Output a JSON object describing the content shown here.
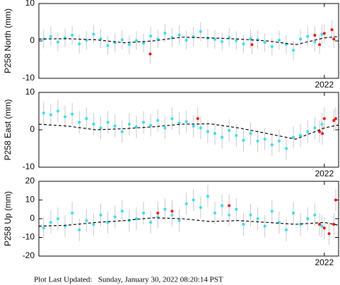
{
  "chart_data": [
    {
      "type": "scatter",
      "ylabel": "P258 North (mm)",
      "ylim": [
        -10,
        10
      ],
      "yticks": [
        -10,
        0,
        10
      ],
      "xlim": [
        2019.0,
        2022.15
      ],
      "xticks": [
        2022
      ],
      "series": [
        {
          "mode": "markers",
          "color": "#33ddee",
          "error": 2.5,
          "x": [
            2019.05,
            2019.125,
            2019.2,
            2019.275,
            2019.35,
            2019.425,
            2019.5,
            2019.575,
            2019.65,
            2019.725,
            2019.8,
            2019.875,
            2019.95,
            2020.025,
            2020.1,
            2020.175,
            2020.25,
            2020.325,
            2020.4,
            2020.475,
            2020.55,
            2020.625,
            2020.7,
            2020.775,
            2020.85,
            2020.925,
            2021.0,
            2021.075,
            2021.15,
            2021.225,
            2021.3,
            2021.375,
            2021.45,
            2021.525,
            2021.6,
            2021.675,
            2021.75,
            2021.825,
            2021.9,
            2021.975
          ],
          "values": [
            0.5,
            1.2,
            -0.3,
            0.8,
            1.5,
            -0.8,
            0.2,
            1.8,
            0.6,
            -1.2,
            -0.5,
            0.3,
            -1,
            0.1,
            -0.6,
            1.3,
            0.5,
            2.1,
            0.9,
            1.6,
            0.2,
            1.1,
            2.5,
            0.7,
            0.4,
            -0.2,
            0.9,
            0.1,
            -0.8,
            0.6,
            0.3,
            -0.4,
            -1.5,
            0.2,
            -0.9,
            -2.5,
            0.5,
            1.2,
            -0.3,
            1.8
          ]
        },
        {
          "mode": "markers",
          "color": "#ee1111",
          "error": 2.5,
          "x": [
            2020.17,
            2021.24,
            2021.9,
            2021.95,
            2022.0,
            2022.08,
            2022.1
          ],
          "values": [
            -3.5,
            -1,
            1.5,
            -1,
            2,
            3,
            0.5
          ]
        },
        {
          "mode": "dashed-line",
          "color": "#000000",
          "x": [
            2019.0,
            2019.3,
            2019.6,
            2019.9,
            2020.2,
            2020.5,
            2020.8,
            2021.1,
            2021.4,
            2021.7,
            2022.0,
            2022.15
          ],
          "values": [
            0.5,
            0.6,
            0.3,
            -0.5,
            0,
            1,
            0.8,
            0.5,
            0,
            -1,
            0.8,
            1.2
          ]
        }
      ]
    },
    {
      "type": "scatter",
      "ylabel": "P258 East (mm)",
      "ylim": [
        -10,
        10
      ],
      "yticks": [
        -10,
        0,
        10
      ],
      "xlim": [
        2019.0,
        2022.15
      ],
      "xticks": [
        2022
      ],
      "series": [
        {
          "mode": "markers",
          "color": "#33ddee",
          "error": 3,
          "x": [
            2019.05,
            2019.125,
            2019.2,
            2019.275,
            2019.35,
            2019.425,
            2019.5,
            2019.575,
            2019.65,
            2019.725,
            2019.8,
            2019.875,
            2019.95,
            2020.025,
            2020.1,
            2020.175,
            2020.25,
            2020.325,
            2020.4,
            2020.475,
            2020.55,
            2020.625,
            2020.7,
            2020.775,
            2020.85,
            2020.925,
            2021.0,
            2021.075,
            2021.15,
            2021.225,
            2021.3,
            2021.375,
            2021.45,
            2021.525,
            2021.6,
            2021.675,
            2021.75,
            2021.825,
            2021.9,
            2021.975
          ],
          "values": [
            4.5,
            4,
            5,
            3.5,
            4.2,
            2,
            3,
            1.5,
            0.5,
            2,
            1,
            -0.5,
            1.5,
            0.8,
            2,
            1.2,
            2.5,
            0.5,
            3,
            1.8,
            2.2,
            1,
            0.5,
            -0.5,
            -1,
            -2,
            -0.2,
            -1.5,
            -2.8,
            -1,
            -3,
            -2.5,
            -4,
            -3,
            -5,
            -2,
            -1.5,
            -0.5,
            0.5,
            1.5
          ]
        },
        {
          "mode": "markers",
          "color": "#ee1111",
          "error": 3,
          "x": [
            2020.67,
            2021.95,
            2021.98,
            2022.0,
            2022.1,
            2022.12
          ],
          "values": [
            3,
            -0.5,
            -1,
            3,
            2.5,
            3
          ]
        },
        {
          "mode": "dashed-line",
          "color": "#000000",
          "x": [
            2019.0,
            2019.3,
            2019.6,
            2019.9,
            2020.2,
            2020.5,
            2020.8,
            2021.1,
            2021.4,
            2021.7,
            2022.0,
            2022.15
          ],
          "values": [
            1.5,
            1,
            0,
            0.3,
            0.8,
            1.5,
            1.6,
            0.5,
            -1,
            -2.5,
            0.5,
            1.3
          ]
        }
      ]
    },
    {
      "type": "scatter",
      "ylabel": "P258 Up (mm)",
      "ylim": [
        -20,
        20
      ],
      "yticks": [
        -20,
        -10,
        0,
        10,
        20
      ],
      "xlim": [
        2019.0,
        2022.15
      ],
      "xticks": [
        2022
      ],
      "series": [
        {
          "mode": "markers",
          "color": "#33ddee",
          "error": 6,
          "x": [
            2019.05,
            2019.125,
            2019.2,
            2019.275,
            2019.35,
            2019.425,
            2019.5,
            2019.575,
            2019.65,
            2019.725,
            2019.8,
            2019.875,
            2019.95,
            2020.025,
            2020.1,
            2020.175,
            2020.25,
            2020.325,
            2020.4,
            2020.475,
            2020.55,
            2020.625,
            2020.7,
            2020.775,
            2020.85,
            2020.925,
            2021.0,
            2021.075,
            2021.15,
            2021.225,
            2021.3,
            2021.375,
            2021.45,
            2021.525,
            2021.6,
            2021.675,
            2021.75,
            2021.825,
            2021.9,
            2021.975
          ],
          "values": [
            -5,
            -2,
            0,
            -4,
            3,
            -6,
            -1,
            -3,
            2,
            -2,
            1,
            4,
            -1,
            0,
            3,
            -2,
            1,
            5,
            2,
            -1,
            8,
            10,
            6,
            12,
            3,
            7,
            2,
            5,
            -3,
            2,
            0,
            -4,
            4,
            -2,
            -6,
            3,
            -3,
            0,
            2,
            -4
          ]
        },
        {
          "mode": "markers",
          "color": "#ee1111",
          "error": 6,
          "x": [
            2020.25,
            2020.4,
            2021.0,
            2021.95,
            2022.0,
            2022.05,
            2022.1,
            2022.12
          ],
          "values": [
            3,
            4,
            7,
            -3,
            -5,
            -8,
            -3,
            10
          ]
        },
        {
          "mode": "dashed-line",
          "color": "#000000",
          "x": [
            2019.0,
            2019.3,
            2019.6,
            2019.9,
            2020.2,
            2020.5,
            2020.8,
            2021.1,
            2021.4,
            2021.7,
            2022.0,
            2022.15
          ],
          "values": [
            -4,
            -3.5,
            -2,
            -1,
            0.5,
            0,
            -1.5,
            -1,
            -2,
            -3,
            -2,
            -3.5
          ]
        }
      ]
    }
  ],
  "footer": "Plot Last Updated:   Sunday, January 30, 2022 08:20:14 PST"
}
